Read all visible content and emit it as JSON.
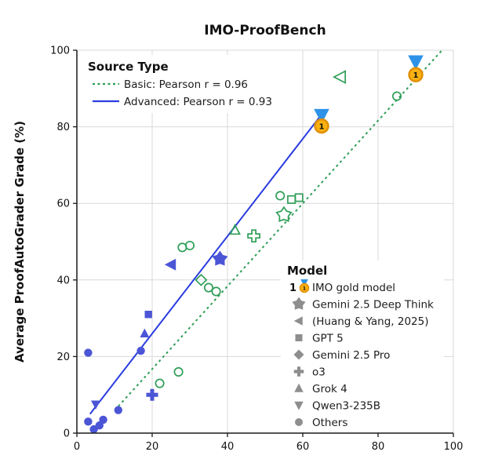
{
  "title": "IMO-ProofBench",
  "ylabel": "Average ProofAutoGrader Grade (%)",
  "colors": {
    "basic": "#2f9e58",
    "advanced_marker": "#4b55d6",
    "advanced_line": "#2a3ce0",
    "gold_marker_blue": "#2e93e8",
    "medal_gold": "#f9b112",
    "medal_rim": "#e08f00",
    "legend_gray": "#8e8e8e",
    "grid": "#d9d9d9",
    "spine": "#1a1a1a"
  },
  "legend_source": {
    "title": "Source Type",
    "items": [
      {
        "label": "Basic: Pearson r = 0.96",
        "style": "dotted",
        "color": "#2f9e58"
      },
      {
        "label": "Advanced: Pearson r = 0.93",
        "style": "solid",
        "color": "#2a3ce0"
      }
    ]
  },
  "legend_model": {
    "title": "Model",
    "items": [
      {
        "marker": "medal",
        "prefix": "1",
        "label": "IMO gold model"
      },
      {
        "marker": "star",
        "label": "Gemini 2.5 Deep Think"
      },
      {
        "marker": "triangle-left",
        "label": "(Huang & Yang, 2025)"
      },
      {
        "marker": "square",
        "label": "GPT 5"
      },
      {
        "marker": "diamond",
        "label": "Gemini 2.5 Pro"
      },
      {
        "marker": "plus",
        "label": "o3"
      },
      {
        "marker": "triangle-up",
        "label": "Grok 4"
      },
      {
        "marker": "triangle-down",
        "label": "Qwen3-235B"
      },
      {
        "marker": "circle",
        "label": "Others"
      }
    ]
  },
  "chart_data": {
    "type": "scatter",
    "title": "IMO-ProofBench",
    "xlabel": "",
    "ylabel": "Average ProofAutoGrader Grade (%)",
    "xlim": [
      0,
      100
    ],
    "ylim": [
      0,
      100
    ],
    "xticks": [
      0,
      20,
      40,
      60,
      80,
      100
    ],
    "yticks": [
      0,
      20,
      40,
      60,
      80,
      100
    ],
    "grid": true,
    "legend_position": "upper-left and center-right, frameless",
    "series": [
      {
        "name": "Basic",
        "fill": "open",
        "color": "#2f9e58",
        "pearson_r": 0.96,
        "trend": {
          "x1": 11,
          "y1": 7,
          "x2": 97,
          "y2": 100,
          "style": "dotted"
        },
        "points": [
          {
            "marker": "circle",
            "x": 22,
            "y": 13
          },
          {
            "marker": "circle",
            "x": 27,
            "y": 16
          },
          {
            "marker": "circle",
            "x": 28,
            "y": 48.5
          },
          {
            "marker": "circle",
            "x": 30,
            "y": 49
          },
          {
            "marker": "diamond",
            "x": 33,
            "y": 40
          },
          {
            "marker": "circle",
            "x": 35,
            "y": 38
          },
          {
            "marker": "circle",
            "x": 37,
            "y": 37
          },
          {
            "marker": "triangle-up",
            "x": 42,
            "y": 53
          },
          {
            "marker": "plus",
            "x": 47,
            "y": 51.5,
            "size": 6
          },
          {
            "marker": "star",
            "x": 55,
            "y": 57,
            "size": 6.5
          },
          {
            "marker": "circle",
            "x": 54,
            "y": 62
          },
          {
            "marker": "square",
            "x": 57,
            "y": 61
          },
          {
            "marker": "square",
            "x": 59,
            "y": 61.5
          },
          {
            "marker": "triangle-left",
            "x": 70,
            "y": 93,
            "size": 6.5
          },
          {
            "marker": "circle",
            "x": 85,
            "y": 88
          }
        ]
      },
      {
        "name": "Advanced",
        "fill": "solid",
        "color": "#4b55d6",
        "pearson_r": 0.93,
        "trend": {
          "x1": 3.5,
          "y1": 5,
          "x2": 66,
          "y2": 84.5,
          "style": "solid"
        },
        "points": [
          {
            "marker": "circle",
            "x": 3,
            "y": 21
          },
          {
            "marker": "circle",
            "x": 3,
            "y": 3
          },
          {
            "marker": "circle",
            "x": 4.5,
            "y": 1
          },
          {
            "marker": "circle",
            "x": 6,
            "y": 2
          },
          {
            "marker": "circle",
            "x": 7,
            "y": 3.5
          },
          {
            "marker": "triangle-down",
            "x": 5,
            "y": 7.5
          },
          {
            "marker": "circle",
            "x": 11,
            "y": 6
          },
          {
            "marker": "circle",
            "x": 17,
            "y": 21.5
          },
          {
            "marker": "triangle-up",
            "x": 18,
            "y": 26
          },
          {
            "marker": "square",
            "x": 19,
            "y": 31
          },
          {
            "marker": "plus",
            "x": 20,
            "y": 10,
            "size": 6
          },
          {
            "marker": "triangle-left",
            "x": 25,
            "y": 44,
            "size": 6.5
          },
          {
            "marker": "star",
            "x": 38,
            "y": 45.5,
            "size": 7
          },
          {
            "marker": "triangle-down",
            "x": 65,
            "y": 83,
            "size": 8.5,
            "gold": true
          },
          {
            "marker": "triangle-down",
            "x": 90,
            "y": 97,
            "size": 8.5,
            "gold": true
          }
        ]
      }
    ],
    "gold_medals": [
      {
        "x": 65,
        "y": 80.2,
        "label": "1"
      },
      {
        "x": 90,
        "y": 93.6,
        "label": "1"
      }
    ]
  }
}
